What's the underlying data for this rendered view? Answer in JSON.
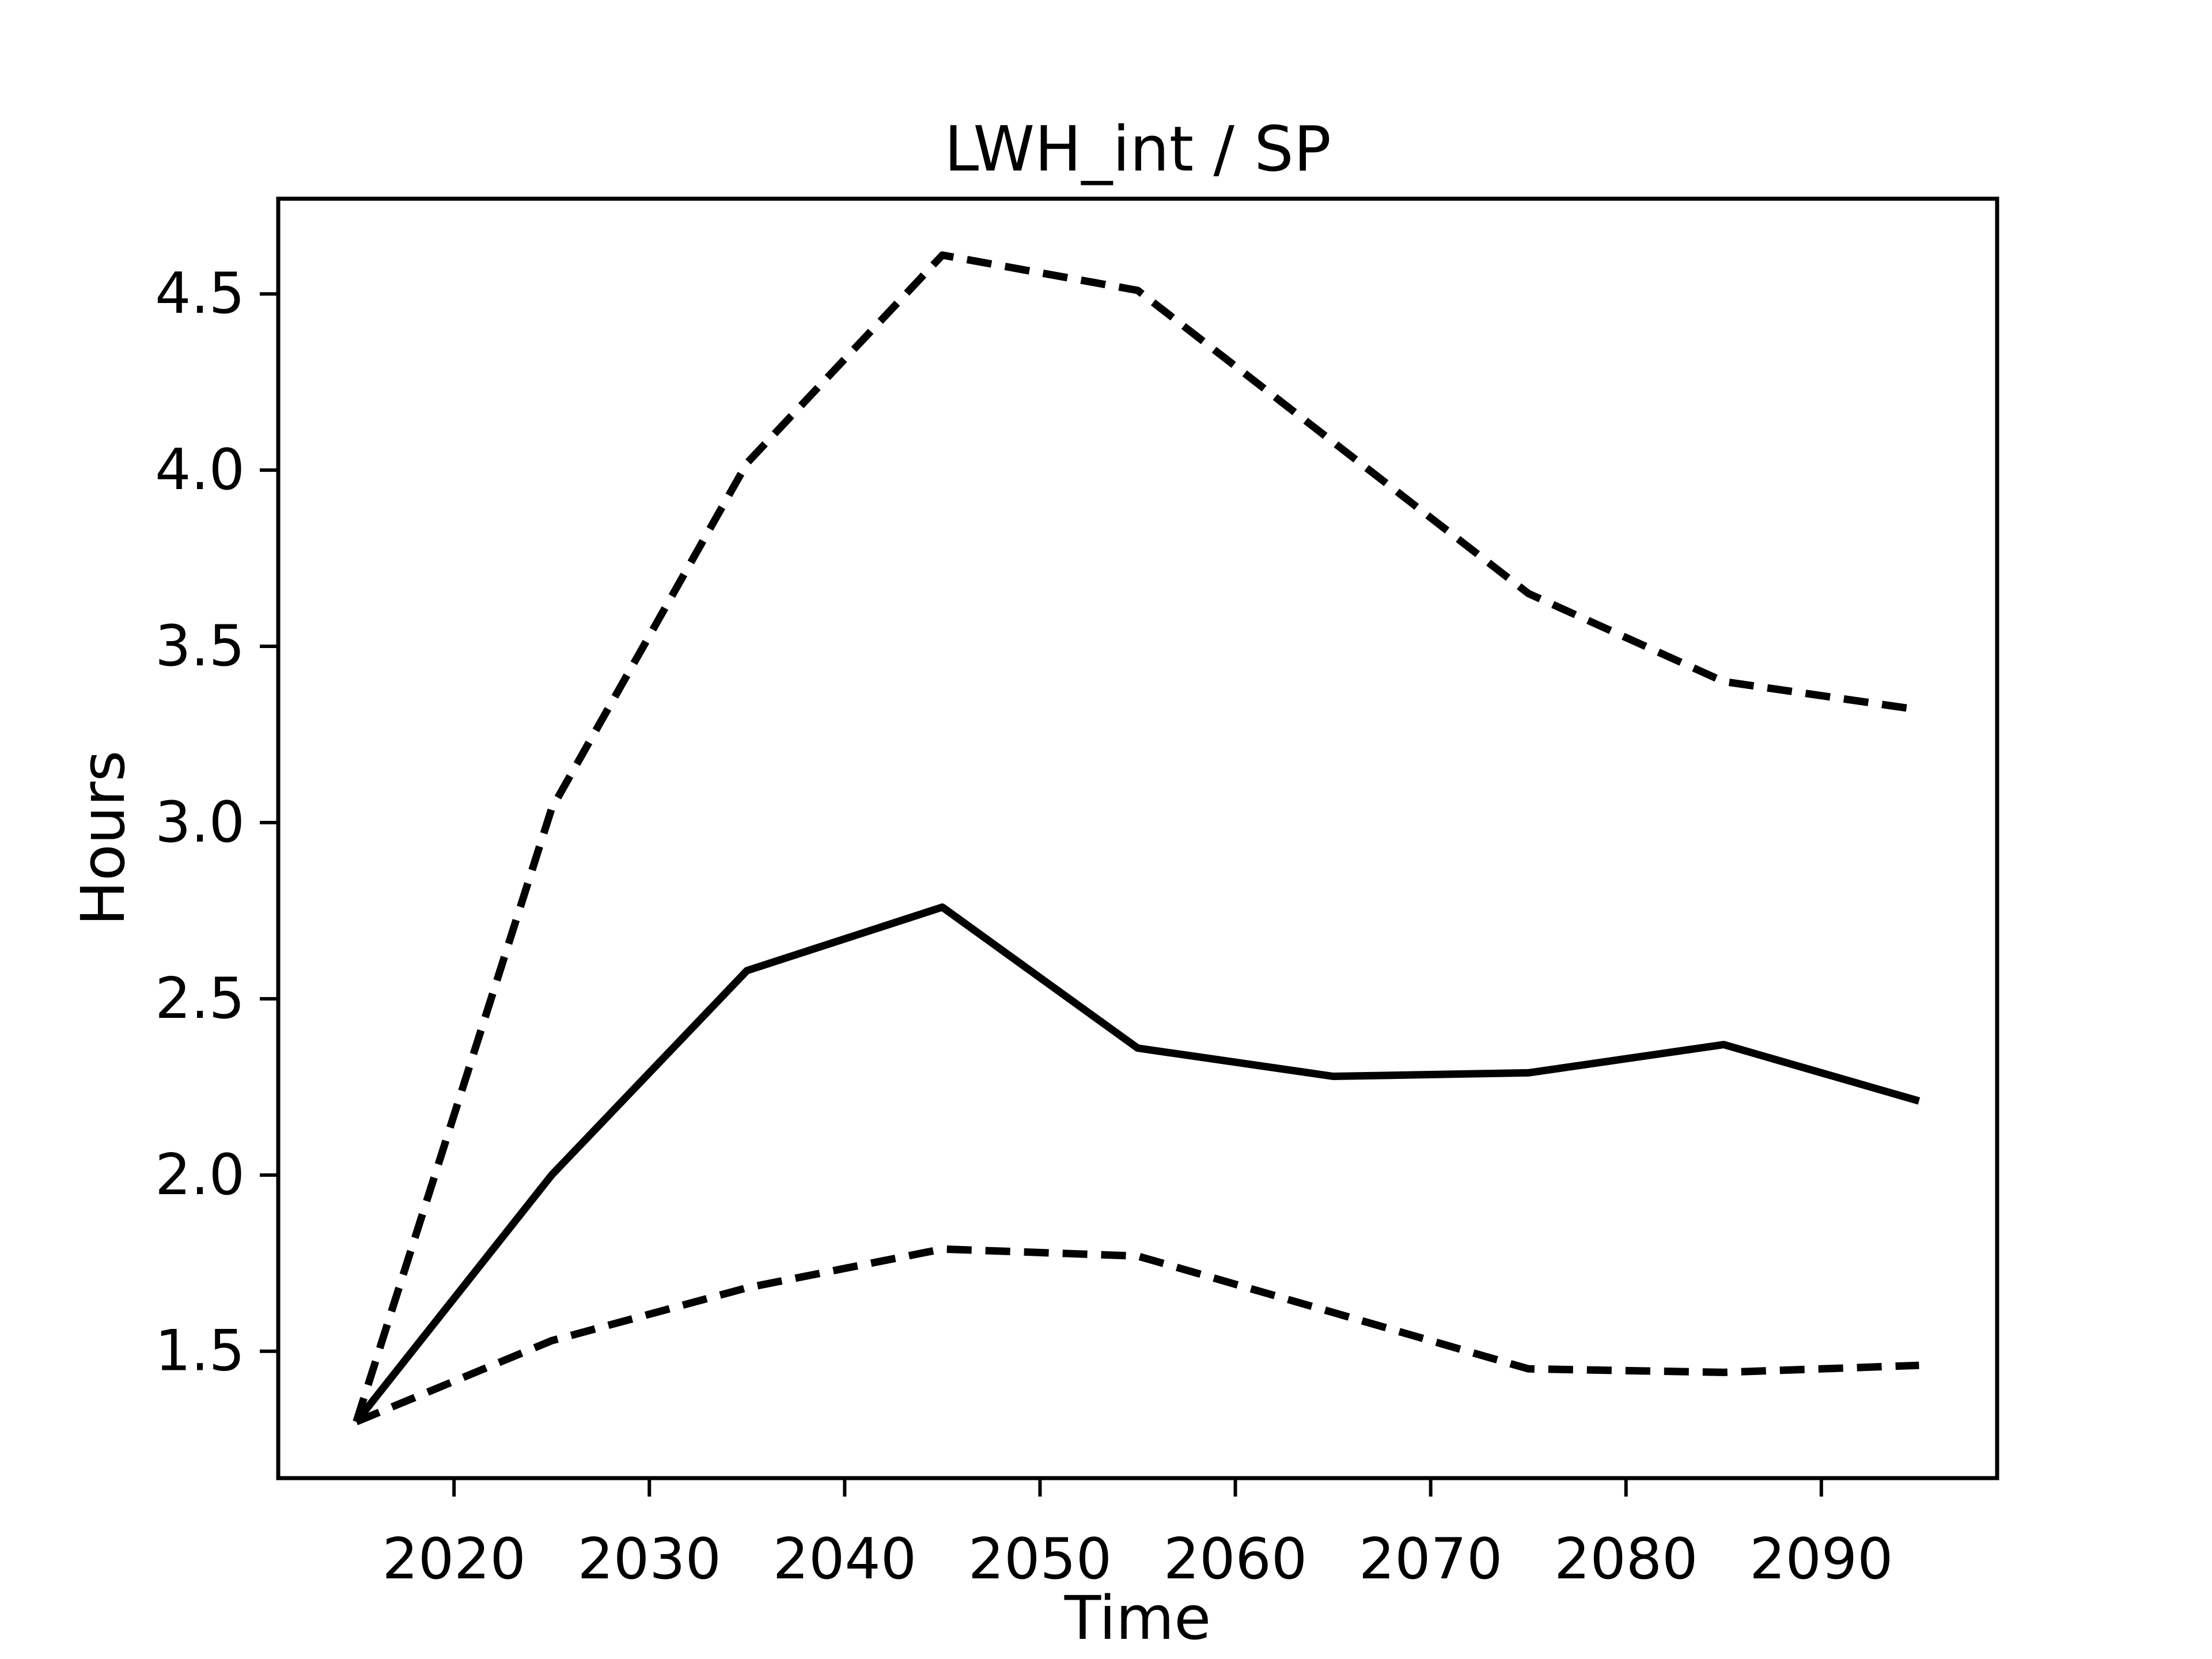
{
  "chart_data": {
    "type": "line",
    "title": "LWH_int / SP",
    "xlabel": "Time",
    "ylabel": "Hours",
    "x": [
      2015,
      2025,
      2035,
      2045,
      2055,
      2065,
      2075,
      2085,
      2095
    ],
    "series": [
      {
        "name": "upper-dashed-bound",
        "style": "dashed",
        "values": [
          1.3,
          3.04,
          4.02,
          4.61,
          4.51,
          4.08,
          3.65,
          3.4,
          3.32
        ]
      },
      {
        "name": "solid-central-line",
        "style": "solid",
        "values": [
          1.3,
          2.0,
          2.58,
          2.76,
          2.36,
          2.28,
          2.29,
          2.37,
          2.21
        ]
      },
      {
        "name": "lower-dashed-bound",
        "style": "dashed",
        "values": [
          1.3,
          1.53,
          1.68,
          1.79,
          1.77,
          1.61,
          1.45,
          1.44,
          1.46
        ]
      }
    ],
    "xlim": [
      2011,
      2099
    ],
    "ylim": [
      1.14,
      4.77
    ],
    "x_ticks": [
      2020,
      2030,
      2040,
      2050,
      2060,
      2070,
      2080,
      2090
    ],
    "x_tick_labels": [
      "2020",
      "2030",
      "2040",
      "2050",
      "2060",
      "2070",
      "2080",
      "2090"
    ],
    "y_ticks": [
      1.5,
      2.0,
      2.5,
      3.0,
      3.5,
      4.0,
      4.5
    ],
    "y_tick_labels": [
      "1.5",
      "2.0",
      "2.5",
      "3.0",
      "3.5",
      "4.0",
      "4.5"
    ],
    "grid": false,
    "legend": "none",
    "line_color": "#000000",
    "background_color": "#ffffff"
  }
}
